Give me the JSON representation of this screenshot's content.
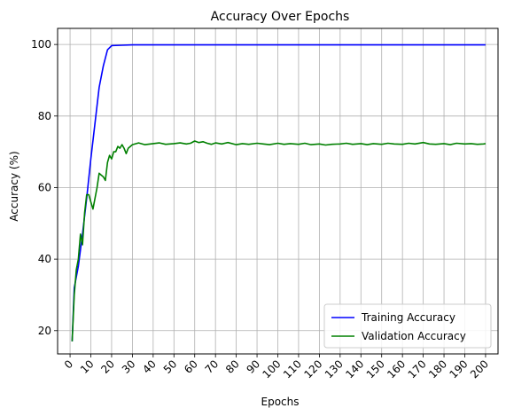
{
  "chart_data": {
    "type": "line",
    "title": "Accuracy Over Epochs",
    "xlabel": "Epochs",
    "ylabel": "Accuracy (%)",
    "xlim": [
      -6,
      206
    ],
    "ylim": [
      13.5,
      104.5
    ],
    "xticks": [
      0,
      10,
      20,
      30,
      40,
      50,
      60,
      70,
      80,
      90,
      100,
      110,
      120,
      130,
      140,
      150,
      160,
      170,
      180,
      190,
      200
    ],
    "yticks": [
      20,
      40,
      60,
      80,
      100
    ],
    "grid": true,
    "legend_position": "lower right",
    "series": [
      {
        "name": "Training Accuracy",
        "color": "#0000ff",
        "x": [
          1,
          2,
          4,
          6,
          8,
          10,
          12,
          14,
          16,
          18,
          20,
          25,
          30,
          40,
          60,
          80,
          100,
          120,
          140,
          160,
          180,
          200
        ],
        "y": [
          17,
          32,
          38,
          47,
          57,
          68,
          78,
          88,
          94,
          98.5,
          99.7,
          99.8,
          99.9,
          99.9,
          99.9,
          99.9,
          99.9,
          99.9,
          99.9,
          99.9,
          99.9,
          99.9
        ]
      },
      {
        "name": "Validation Accuracy",
        "color": "#008000",
        "x": [
          1,
          2,
          3,
          4,
          5,
          6,
          7,
          8,
          9,
          10,
          11,
          12,
          13,
          14,
          15,
          16,
          17,
          18,
          19,
          20,
          21,
          22,
          23,
          24,
          25,
          26,
          27,
          28,
          30,
          33,
          36,
          40,
          43,
          46,
          50,
          53,
          56,
          58,
          60,
          62,
          64,
          66,
          68,
          70,
          73,
          76,
          80,
          83,
          86,
          90,
          93,
          96,
          100,
          103,
          106,
          110,
          113,
          116,
          120,
          123,
          126,
          130,
          133,
          136,
          140,
          143,
          146,
          150,
          153,
          156,
          160,
          163,
          166,
          170,
          173,
          176,
          180,
          183,
          186,
          190,
          193,
          196,
          199,
          200
        ],
        "y": [
          17,
          30,
          37,
          40,
          47,
          44,
          53,
          58,
          58,
          56,
          54,
          57,
          60,
          64,
          63.5,
          63,
          62,
          67,
          69,
          68,
          70,
          70,
          71.5,
          71,
          72,
          71,
          69.5,
          71,
          72,
          72.5,
          72,
          72.3,
          72.5,
          72.1,
          72.3,
          72.5,
          72.2,
          72.4,
          73,
          72.6,
          72.8,
          72.4,
          72.1,
          72.5,
          72.2,
          72.6,
          72,
          72.3,
          72.1,
          72.4,
          72.2,
          72,
          72.4,
          72.1,
          72.3,
          72.1,
          72.4,
          72,
          72.2,
          71.9,
          72.1,
          72.2,
          72.4,
          72.1,
          72.3,
          72,
          72.3,
          72.1,
          72.4,
          72.2,
          72.1,
          72.4,
          72.2,
          72.6,
          72.2,
          72.1,
          72.3,
          72,
          72.4,
          72.2,
          72.3,
          72.1,
          72.2,
          72.3
        ]
      }
    ]
  }
}
